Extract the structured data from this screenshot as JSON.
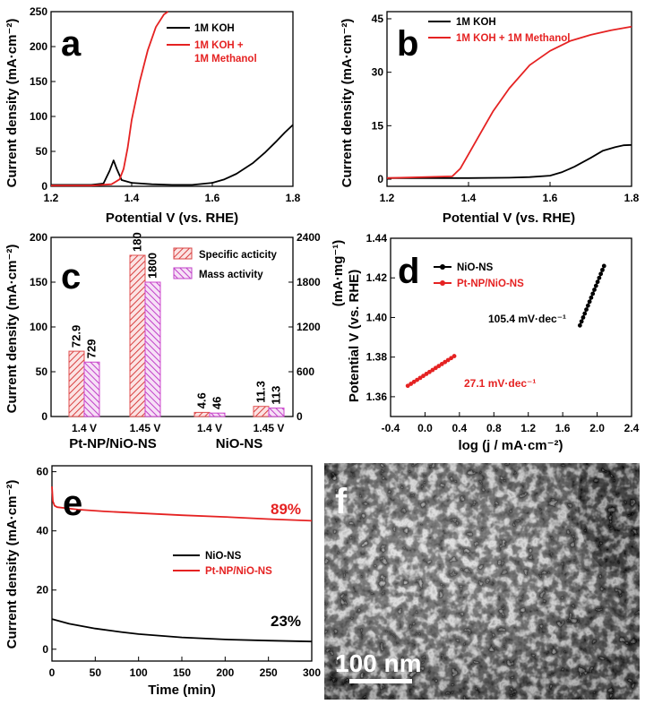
{
  "chart_data": [
    {
      "panel": "a",
      "type": "line",
      "xlabel": "Potential V (vs. RHE)",
      "ylabel": "Current density (mA·cm⁻²)",
      "xlim": [
        1.2,
        1.8
      ],
      "ylim": [
        0,
        250
      ],
      "xticks": [
        "1.2",
        "1.4",
        "1.6",
        "1.8"
      ],
      "yticks": [
        "0",
        "50",
        "100",
        "150",
        "200",
        "250"
      ],
      "legend_lines": [
        "1M KOH",
        "1M KOH +",
        "1M  Methanol"
      ],
      "series": [
        {
          "name": "1M KOH",
          "color": "#000000",
          "x": [
            1.2,
            1.3,
            1.33,
            1.345,
            1.355,
            1.363,
            1.375,
            1.4,
            1.45,
            1.5,
            1.55,
            1.6,
            1.63,
            1.66,
            1.7,
            1.73,
            1.76,
            1.78,
            1.8
          ],
          "y": [
            2,
            2,
            4,
            22,
            37,
            25,
            9,
            5,
            3,
            2,
            2,
            5,
            10,
            18,
            33,
            48,
            65,
            77,
            88
          ]
        },
        {
          "name": "1M KOH + 1M  Methanol",
          "color": "#e52222",
          "x": [
            1.2,
            1.3,
            1.35,
            1.37,
            1.38,
            1.39,
            1.4,
            1.42,
            1.44,
            1.46,
            1.48,
            1.49
          ],
          "y": [
            1,
            1,
            3,
            10,
            25,
            55,
            95,
            150,
            195,
            228,
            246,
            252
          ]
        }
      ]
    },
    {
      "panel": "b",
      "type": "line",
      "xlabel": "Potential V (vs. RHE)",
      "ylabel": "Current density (mA·cm⁻²)",
      "xlim": [
        1.2,
        1.8
      ],
      "ylim": [
        -2,
        47
      ],
      "xticks": [
        "1.2",
        "1.4",
        "1.6",
        "1.8"
      ],
      "yticks": [
        "0",
        "15",
        "30",
        "45"
      ],
      "legend": [
        "1M KOH",
        "1M KOH + 1M  Methanol"
      ],
      "series": [
        {
          "name": "1M KOH",
          "color": "#000000",
          "x": [
            1.2,
            1.4,
            1.5,
            1.55,
            1.6,
            1.63,
            1.66,
            1.7,
            1.73,
            1.76,
            1.78,
            1.8
          ],
          "y": [
            0.3,
            0.3,
            0.4,
            0.6,
            1,
            2,
            3.5,
            6,
            8,
            9,
            9.5,
            9.6
          ]
        },
        {
          "name": "1M KOH + 1M  Methanol",
          "color": "#e52222",
          "x": [
            1.2,
            1.36,
            1.38,
            1.4,
            1.43,
            1.46,
            1.5,
            1.55,
            1.6,
            1.65,
            1.7,
            1.75,
            1.8
          ],
          "y": [
            0.3,
            0.8,
            3,
            7,
            13,
            19,
            25.5,
            32,
            36,
            38.8,
            40.5,
            41.8,
            42.8
          ]
        }
      ]
    },
    {
      "panel": "c",
      "type": "bar",
      "ylabel": "Current density (mA·cm⁻²)",
      "ylabel_right": "(mA·mg⁻¹)",
      "ylim": [
        0,
        200
      ],
      "ylim_right": [
        0,
        2400
      ],
      "yticks": [
        "0",
        "50",
        "100",
        "150",
        "200"
      ],
      "yticks_right": [
        "0",
        "600",
        "1200",
        "1800",
        "2400"
      ],
      "categories": [
        "1.4 V",
        "1.45 V",
        "1.4 V",
        "1.45 V"
      ],
      "groups": [
        "Pt-NP/NiO-NS",
        "NiO-NS"
      ],
      "series": [
        {
          "name": "Specific acticity",
          "color": "#e05050",
          "values": [
            72.9,
            180,
            4.6,
            11.3
          ],
          "labels": [
            "72.9",
            "180",
            "4.6",
            "11.3"
          ]
        },
        {
          "name": "Mass activity",
          "color": "#cc44cc",
          "values": [
            729,
            1800,
            46,
            113
          ],
          "labels": [
            "729",
            "1800",
            "46",
            "113"
          ]
        }
      ]
    },
    {
      "panel": "d",
      "type": "scatter",
      "xlabel": "log (j / mA·cm⁻²)",
      "ylabel": "Potential V (vs. RHE)",
      "xlim": [
        -0.4,
        2.4
      ],
      "ylim": [
        1.35,
        1.44
      ],
      "xticks": [
        "-0.4",
        "0.0",
        "0.4",
        "0.8",
        "1.2",
        "1.6",
        "2.0",
        "2.4"
      ],
      "yticks": [
        "1.36",
        "1.38",
        "1.40",
        "1.42",
        "1.44"
      ],
      "series": [
        {
          "name": "NiO-NS",
          "color": "#000000",
          "slope_label": "105.4 mV·dec⁻¹",
          "x_range": [
            1.8,
            2.08
          ],
          "y_range": [
            1.396,
            1.426
          ],
          "points": 16
        },
        {
          "name": "Pt-NP/NiO-NS",
          "color": "#e52222",
          "slope_label": "27.1 mV·dec⁻¹",
          "x_range": [
            -0.2,
            0.34
          ],
          "y_range": [
            1.3655,
            1.3805
          ],
          "points": 16
        }
      ]
    },
    {
      "panel": "e",
      "type": "line",
      "xlabel": "Time (min)",
      "ylabel": "Current density (mA·cm⁻²)",
      "xlim": [
        0,
        300
      ],
      "ylim": [
        -4,
        62
      ],
      "xticks": [
        "0",
        "50",
        "100",
        "150",
        "200",
        "250",
        "300"
      ],
      "yticks": [
        "0",
        "20",
        "40",
        "60"
      ],
      "series": [
        {
          "name": "NiO-NS",
          "color": "#000000",
          "retention": "23%",
          "x": [
            0,
            20,
            50,
            80,
            100,
            150,
            200,
            250,
            300
          ],
          "y": [
            10.2,
            8.6,
            7.0,
            5.8,
            5.1,
            4.0,
            3.3,
            2.9,
            2.6
          ]
        },
        {
          "name": "Pt-NP/NiO-NS",
          "color": "#e52222",
          "retention": "89%",
          "x": [
            0,
            1,
            3,
            6,
            12,
            30,
            60,
            100,
            150,
            200,
            250,
            300
          ],
          "y": [
            55,
            50,
            48.5,
            48,
            47.8,
            47.2,
            46.6,
            46,
            45.3,
            44.7,
            44.0,
            43.4
          ]
        }
      ]
    }
  ],
  "panel_letters": [
    "a",
    "b",
    "c",
    "d",
    "e",
    "f"
  ],
  "image_f": {
    "scale_bar_label": "100 nm"
  }
}
